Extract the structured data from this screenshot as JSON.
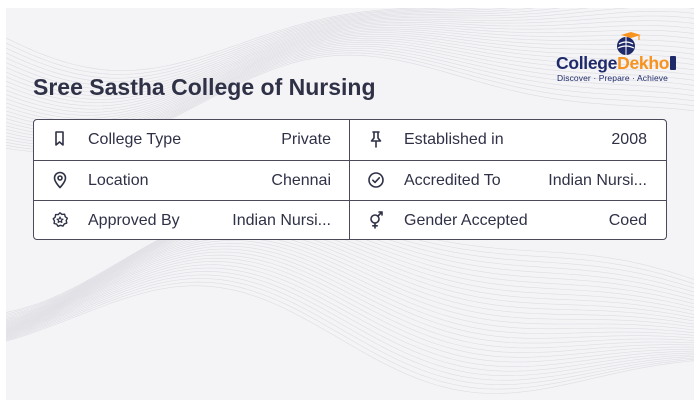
{
  "logo": {
    "name_part1": "College",
    "name_part2": "Dekho",
    "tagline": "Discover · Prepare · Achieve",
    "colors": {
      "navy": "#1f2a6b",
      "orange": "#f7931e"
    },
    "icon": "globe-graduation-icon"
  },
  "title": "Sree Sastha College of Nursing",
  "rows": [
    {
      "left": {
        "icon": "bookmark-icon",
        "label": "College Type",
        "value": "Private"
      },
      "right": {
        "icon": "pin-icon",
        "label": "Established in",
        "value": "2008"
      }
    },
    {
      "left": {
        "icon": "location-icon",
        "label": "Location",
        "value": "Chennai"
      },
      "right": {
        "icon": "check-circle-icon",
        "label": "Accredited To",
        "value": "Indian Nursi..."
      }
    },
    {
      "left": {
        "icon": "star-badge-icon",
        "label": "Approved By",
        "value": "Indian Nursi..."
      },
      "right": {
        "icon": "gender-icon",
        "label": "Gender Accepted",
        "value": "Coed"
      }
    }
  ]
}
